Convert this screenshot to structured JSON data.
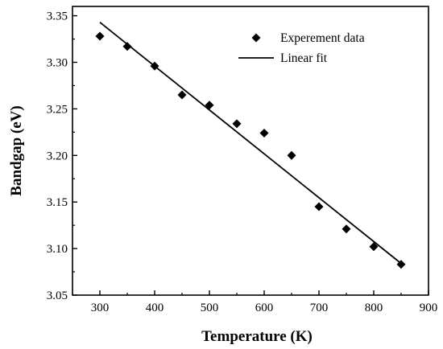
{
  "chart_data": {
    "type": "scatter",
    "xlabel": "Temperature (K)",
    "ylabel": "Bandgap (eV)",
    "xlim": [
      250,
      900
    ],
    "ylim": [
      3.05,
      3.36
    ],
    "x_ticks": [
      300,
      400,
      500,
      600,
      700,
      800,
      900
    ],
    "y_ticks": [
      3.05,
      3.1,
      3.15,
      3.2,
      3.25,
      3.3,
      3.35
    ],
    "x_tick_labels": [
      "300",
      "400",
      "500",
      "600",
      "700",
      "800",
      "900"
    ],
    "y_tick_labels": [
      "3.05",
      "3.10",
      "3.15",
      "3.20",
      "3.25",
      "3.30",
      "3.35"
    ],
    "legend_position": "top-right",
    "grid": false,
    "series": [
      {
        "name": "Experement data",
        "kind": "scatter",
        "marker": "diamond",
        "color": "#000000",
        "x": [
          300,
          350,
          400,
          450,
          500,
          550,
          600,
          650,
          700,
          750,
          800,
          850
        ],
        "y": [
          3.328,
          3.317,
          3.296,
          3.265,
          3.254,
          3.234,
          3.224,
          3.2,
          3.145,
          3.121,
          3.102,
          3.083
        ]
      },
      {
        "name": "Linear fit",
        "kind": "line",
        "color": "#000000",
        "x": [
          300,
          850
        ],
        "y": [
          3.343,
          3.084
        ]
      }
    ]
  }
}
